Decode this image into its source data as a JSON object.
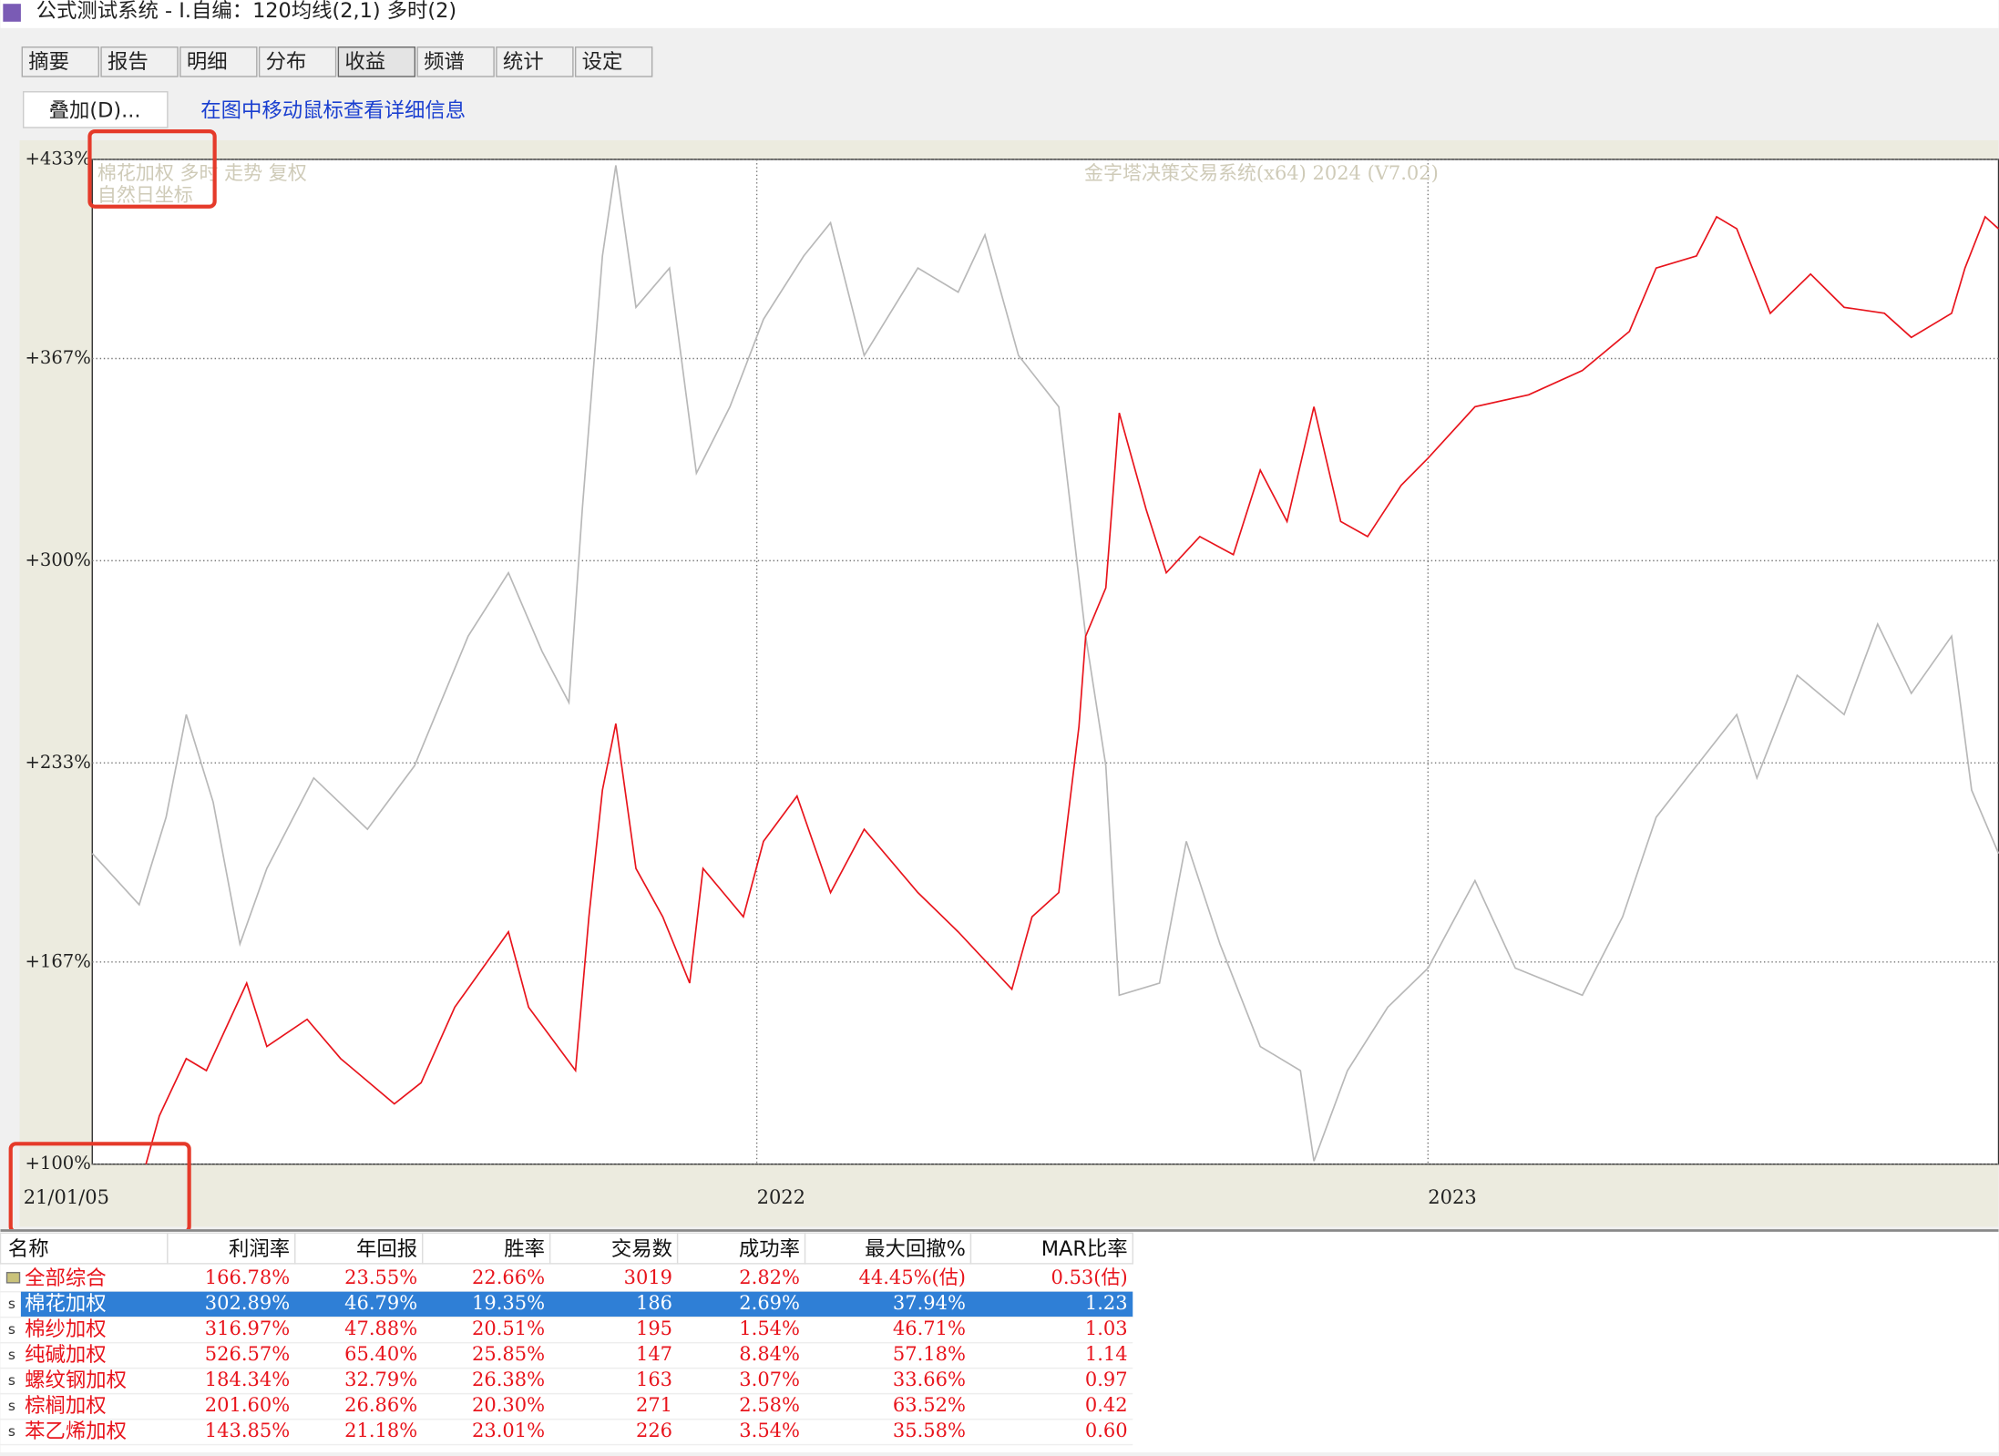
{
  "window_title": "公式测试系统 - I.自编：120均线(2,1) 多时(2)",
  "tabs": [
    "摘要",
    "报告",
    "明细",
    "分布",
    "收益",
    "频谱",
    "统计",
    "设定"
  ],
  "overlay_button": "叠加(D)...",
  "hint": "在图中移动鼠标查看详细信息",
  "chart_data": {
    "type": "line",
    "watermark_left": [
      "棉花加权 多时 走势 复权",
      "自然日坐标"
    ],
    "watermark_right": "金字塔决策交易系统(x64) 2024 (V7.02)",
    "xlim": [
      2021.01,
      2023.85
    ],
    "xticks": [
      {
        "value": 2021.01,
        "label": "21/01/05"
      },
      {
        "value": 2022,
        "label": "2022"
      },
      {
        "value": 2023,
        "label": "2023"
      }
    ],
    "ylim": [
      100,
      433
    ],
    "yticks": [
      {
        "value": 100,
        "label": "+100%"
      },
      {
        "value": 167,
        "label": "+167%"
      },
      {
        "value": 233,
        "label": "+233%"
      },
      {
        "value": 300,
        "label": "+300%"
      },
      {
        "value": 367,
        "label": "+367%"
      },
      {
        "value": 433,
        "label": "+433%"
      }
    ],
    "grid": true,
    "series": [
      {
        "color": "#b8b8b8",
        "x": [
          2021.01,
          2021.08,
          2021.12,
          2021.15,
          2021.19,
          2021.23,
          2021.27,
          2021.34,
          2021.42,
          2021.49,
          2021.57,
          2021.63,
          2021.68,
          2021.72,
          2021.74,
          2021.77,
          2021.79,
          2021.82,
          2021.87,
          2021.91,
          2021.96,
          2022.01,
          2022.07,
          2022.11,
          2022.16,
          2022.24,
          2022.3,
          2022.34,
          2022.39,
          2022.45,
          2022.49,
          2022.52,
          2022.54,
          2022.6,
          2022.64,
          2022.69,
          2022.75,
          2022.81,
          2022.83,
          2022.88,
          2022.94,
          2023.0,
          2023.07,
          2023.13,
          2023.23,
          2023.29,
          2023.34,
          2023.4,
          2023.46,
          2023.49,
          2023.55,
          2023.62,
          2023.67,
          2023.72,
          2023.78,
          2023.81,
          2023.85
        ],
        "values": [
          203,
          186,
          215,
          249,
          220,
          173,
          198,
          228,
          211,
          232,
          275,
          296,
          270,
          253,
          317,
          401,
          431,
          384,
          397,
          329,
          351,
          380,
          401,
          412,
          368,
          397,
          389,
          408,
          368,
          351,
          275,
          232,
          156,
          160,
          207,
          173,
          139,
          131,
          101,
          131,
          152,
          165,
          194,
          165,
          156,
          182,
          215,
          232,
          249,
          228,
          262,
          249,
          279,
          256,
          275,
          224,
          203
        ]
      },
      {
        "color": "#e8141c",
        "x": [
          2021.09,
          2021.11,
          2021.15,
          2021.18,
          2021.24,
          2021.27,
          2021.33,
          2021.38,
          2021.46,
          2021.5,
          2021.55,
          2021.63,
          2021.66,
          2021.73,
          2021.75,
          2021.77,
          2021.79,
          2021.82,
          2021.86,
          2021.9,
          2021.92,
          2021.95,
          2021.98,
          2022.01,
          2022.06,
          2022.11,
          2022.16,
          2022.24,
          2022.3,
          2022.38,
          2022.41,
          2022.45,
          2022.48,
          2022.49,
          2022.52,
          2022.54,
          2022.58,
          2022.61,
          2022.66,
          2022.71,
          2022.75,
          2022.79,
          2022.83,
          2022.87,
          2022.91,
          2022.96,
          2023.0,
          2023.07,
          2023.15,
          2023.23,
          2023.3,
          2023.34,
          2023.4,
          2023.43,
          2023.46,
          2023.51,
          2023.57,
          2023.62,
          2023.68,
          2023.72,
          2023.78,
          2023.8,
          2023.83,
          2023.85
        ],
        "values": [
          100,
          116,
          135,
          131,
          160,
          139,
          148,
          135,
          120,
          127,
          152,
          177,
          152,
          131,
          182,
          224,
          246,
          198,
          182,
          160,
          198,
          190,
          182,
          207,
          222,
          190,
          211,
          190,
          177,
          158,
          182,
          190,
          245,
          275,
          291,
          349,
          317,
          296,
          308,
          302,
          330,
          313,
          351,
          313,
          308,
          325,
          334,
          351,
          355,
          363,
          376,
          397,
          401,
          414,
          410,
          382,
          395,
          384,
          382,
          374,
          382,
          397,
          414,
          410
        ]
      }
    ]
  },
  "table": {
    "headers": [
      "名称",
      "利润率",
      "年回报",
      "胜率",
      "交易数",
      "成功率",
      "最大回撤%",
      "MAR比率"
    ],
    "rows": [
      {
        "cells": [
          "全部综合",
          "166.78%",
          "23.55%",
          "22.66%",
          "3019",
          "2.82%",
          "44.45%(估)",
          "0.53(估)"
        ]
      },
      {
        "icon": "s",
        "cells": [
          "棉花加权",
          "302.89%",
          "46.79%",
          "19.35%",
          "186",
          "2.69%",
          "37.94%",
          "1.23"
        ]
      },
      {
        "icon": "s",
        "cells": [
          "棉纱加权",
          "316.97%",
          "47.88%",
          "20.51%",
          "195",
          "1.54%",
          "46.71%",
          "1.03"
        ]
      },
      {
        "icon": "s",
        "cells": [
          "纯碱加权",
          "526.57%",
          "65.40%",
          "25.85%",
          "147",
          "8.84%",
          "57.18%",
          "1.14"
        ]
      },
      {
        "icon": "s",
        "cells": [
          "螺纹钢加权",
          "184.34%",
          "32.79%",
          "26.38%",
          "163",
          "3.07%",
          "33.66%",
          "0.97"
        ]
      },
      {
        "icon": "s",
        "cells": [
          "棕榈加权",
          "201.60%",
          "26.86%",
          "20.30%",
          "271",
          "2.58%",
          "63.52%",
          "0.42"
        ]
      },
      {
        "icon": "s",
        "cells": [
          "苯乙烯加权",
          "143.85%",
          "21.18%",
          "23.01%",
          "226",
          "3.54%",
          "35.58%",
          "0.60"
        ]
      }
    ]
  }
}
